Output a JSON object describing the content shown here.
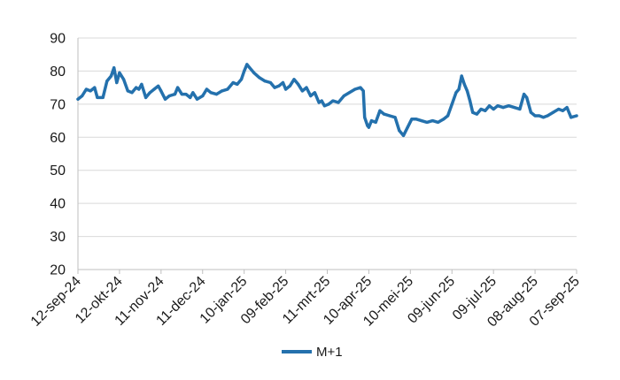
{
  "chart_data": {
    "type": "line",
    "title": "",
    "xlabel": "",
    "ylabel": "",
    "ylim": [
      20,
      90
    ],
    "yticks": [
      20,
      30,
      40,
      50,
      60,
      70,
      80,
      90
    ],
    "x_tick_labels": [
      "12-sep-24",
      "12-okt-24",
      "11-nov-24",
      "11-dec-24",
      "10-jan-25",
      "09-feb-25",
      "11-mrt-25",
      "10-apr-25",
      "10-mei-25",
      "09-jun-25",
      "09-jul-25",
      "08-aug-25",
      "07-sep-25"
    ],
    "grid": "horizontal",
    "legend_position": "bottom-center",
    "series": [
      {
        "name": "M+1",
        "color": "#2471ad",
        "points": [
          {
            "x": "12-sep-24",
            "y": 71.5
          },
          {
            "x": "15-sep-24",
            "y": 72.5
          },
          {
            "x": "18-sep-24",
            "y": 74.5
          },
          {
            "x": "21-sep-24",
            "y": 74.0
          },
          {
            "x": "24-sep-24",
            "y": 75.0
          },
          {
            "x": "26-sep-24",
            "y": 72.0
          },
          {
            "x": "30-sep-24",
            "y": 72.0
          },
          {
            "x": "03-okt-24",
            "y": 77.0
          },
          {
            "x": "06-okt-24",
            "y": 78.5
          },
          {
            "x": "08-okt-24",
            "y": 81.0
          },
          {
            "x": "10-okt-24",
            "y": 76.5
          },
          {
            "x": "12-okt-24",
            "y": 79.5
          },
          {
            "x": "15-okt-24",
            "y": 77.5
          },
          {
            "x": "18-okt-24",
            "y": 74.0
          },
          {
            "x": "21-okt-24",
            "y": 73.5
          },
          {
            "x": "24-okt-24",
            "y": 75.0
          },
          {
            "x": "26-okt-24",
            "y": 74.5
          },
          {
            "x": "28-okt-24",
            "y": 76.0
          },
          {
            "x": "31-okt-24",
            "y": 72.0
          },
          {
            "x": "03-nov-24",
            "y": 73.5
          },
          {
            "x": "06-nov-24",
            "y": 74.5
          },
          {
            "x": "09-nov-24",
            "y": 75.5
          },
          {
            "x": "11-nov-24",
            "y": 74.0
          },
          {
            "x": "14-nov-24",
            "y": 71.5
          },
          {
            "x": "17-nov-24",
            "y": 72.5
          },
          {
            "x": "21-nov-24",
            "y": 73.0
          },
          {
            "x": "23-nov-24",
            "y": 75.0
          },
          {
            "x": "26-nov-24",
            "y": 73.0
          },
          {
            "x": "29-nov-24",
            "y": 73.0
          },
          {
            "x": "02-dec-24",
            "y": 72.0
          },
          {
            "x": "04-dec-24",
            "y": 73.5
          },
          {
            "x": "07-dec-24",
            "y": 71.5
          },
          {
            "x": "11-dec-24",
            "y": 72.5
          },
          {
            "x": "14-dec-24",
            "y": 74.5
          },
          {
            "x": "17-dec-24",
            "y": 73.5
          },
          {
            "x": "21-dec-24",
            "y": 73.0
          },
          {
            "x": "25-dec-24",
            "y": 74.0
          },
          {
            "x": "29-dec-24",
            "y": 74.5
          },
          {
            "x": "02-jan-25",
            "y": 76.5
          },
          {
            "x": "05-jan-25",
            "y": 76.0
          },
          {
            "x": "08-jan-25",
            "y": 77.5
          },
          {
            "x": "10-jan-25",
            "y": 80.0
          },
          {
            "x": "12-jan-25",
            "y": 82.0
          },
          {
            "x": "14-jan-25",
            "y": 81.0
          },
          {
            "x": "17-jan-25",
            "y": 79.5
          },
          {
            "x": "21-jan-25",
            "y": 78.0
          },
          {
            "x": "25-jan-25",
            "y": 77.0
          },
          {
            "x": "29-jan-25",
            "y": 76.5
          },
          {
            "x": "01-feb-25",
            "y": 75.0
          },
          {
            "x": "04-feb-25",
            "y": 75.5
          },
          {
            "x": "07-feb-25",
            "y": 76.5
          },
          {
            "x": "09-feb-25",
            "y": 74.5
          },
          {
            "x": "12-feb-25",
            "y": 75.5
          },
          {
            "x": "15-feb-25",
            "y": 77.5
          },
          {
            "x": "18-feb-25",
            "y": 76.0
          },
          {
            "x": "21-feb-25",
            "y": 74.0
          },
          {
            "x": "24-feb-25",
            "y": 75.0
          },
          {
            "x": "27-feb-25",
            "y": 72.5
          },
          {
            "x": "02-mrt-25",
            "y": 73.5
          },
          {
            "x": "05-mrt-25",
            "y": 70.5
          },
          {
            "x": "07-mrt-25",
            "y": 71.0
          },
          {
            "x": "09-mrt-25",
            "y": 69.5
          },
          {
            "x": "12-mrt-25",
            "y": 70.0
          },
          {
            "x": "15-mrt-25",
            "y": 71.0
          },
          {
            "x": "19-mrt-25",
            "y": 70.5
          },
          {
            "x": "23-mrt-25",
            "y": 72.5
          },
          {
            "x": "27-mrt-25",
            "y": 73.5
          },
          {
            "x": "31-mrt-25",
            "y": 74.5
          },
          {
            "x": "04-apr-25",
            "y": 75.0
          },
          {
            "x": "06-apr-25",
            "y": 74.0
          },
          {
            "x": "07-apr-25",
            "y": 66.0
          },
          {
            "x": "09-apr-25",
            "y": 63.5
          },
          {
            "x": "10-apr-25",
            "y": 63.0
          },
          {
            "x": "12-apr-25",
            "y": 65.0
          },
          {
            "x": "15-apr-25",
            "y": 64.5
          },
          {
            "x": "18-apr-25",
            "y": 68.0
          },
          {
            "x": "21-apr-25",
            "y": 67.0
          },
          {
            "x": "25-apr-25",
            "y": 66.5
          },
          {
            "x": "29-apr-25",
            "y": 66.0
          },
          {
            "x": "02-mei-25",
            "y": 62.0
          },
          {
            "x": "05-mei-25",
            "y": 60.5
          },
          {
            "x": "08-mei-25",
            "y": 63.0
          },
          {
            "x": "11-mei-25",
            "y": 65.5
          },
          {
            "x": "14-mei-25",
            "y": 65.5
          },
          {
            "x": "18-mei-25",
            "y": 65.0
          },
          {
            "x": "22-mei-25",
            "y": 64.5
          },
          {
            "x": "26-mei-25",
            "y": 65.0
          },
          {
            "x": "30-mei-25",
            "y": 64.5
          },
          {
            "x": "03-jun-25",
            "y": 65.5
          },
          {
            "x": "06-jun-25",
            "y": 66.5
          },
          {
            "x": "09-jun-25",
            "y": 70.0
          },
          {
            "x": "12-jun-25",
            "y": 73.5
          },
          {
            "x": "14-jun-25",
            "y": 74.5
          },
          {
            "x": "16-jun-25",
            "y": 78.5
          },
          {
            "x": "18-jun-25",
            "y": 76.0
          },
          {
            "x": "20-jun-25",
            "y": 74.0
          },
          {
            "x": "22-jun-25",
            "y": 71.0
          },
          {
            "x": "24-jun-25",
            "y": 67.5
          },
          {
            "x": "27-jun-25",
            "y": 67.0
          },
          {
            "x": "30-jun-25",
            "y": 68.5
          },
          {
            "x": "03-jul-25",
            "y": 68.0
          },
          {
            "x": "06-jul-25",
            "y": 69.5
          },
          {
            "x": "09-jul-25",
            "y": 68.5
          },
          {
            "x": "12-jul-25",
            "y": 69.5
          },
          {
            "x": "16-jul-25",
            "y": 69.0
          },
          {
            "x": "20-jul-25",
            "y": 69.5
          },
          {
            "x": "24-jul-25",
            "y": 69.0
          },
          {
            "x": "28-jul-25",
            "y": 68.5
          },
          {
            "x": "31-jul-25",
            "y": 73.0
          },
          {
            "x": "02-aug-25",
            "y": 72.0
          },
          {
            "x": "05-aug-25",
            "y": 67.5
          },
          {
            "x": "08-aug-25",
            "y": 66.5
          },
          {
            "x": "11-aug-25",
            "y": 66.5
          },
          {
            "x": "14-aug-25",
            "y": 66.0
          },
          {
            "x": "17-aug-25",
            "y": 66.5
          },
          {
            "x": "21-aug-25",
            "y": 67.5
          },
          {
            "x": "25-aug-25",
            "y": 68.5
          },
          {
            "x": "28-aug-25",
            "y": 68.0
          },
          {
            "x": "31-aug-25",
            "y": 69.0
          },
          {
            "x": "03-sep-25",
            "y": 66.0
          },
          {
            "x": "07-sep-25",
            "y": 66.5
          }
        ]
      }
    ]
  }
}
